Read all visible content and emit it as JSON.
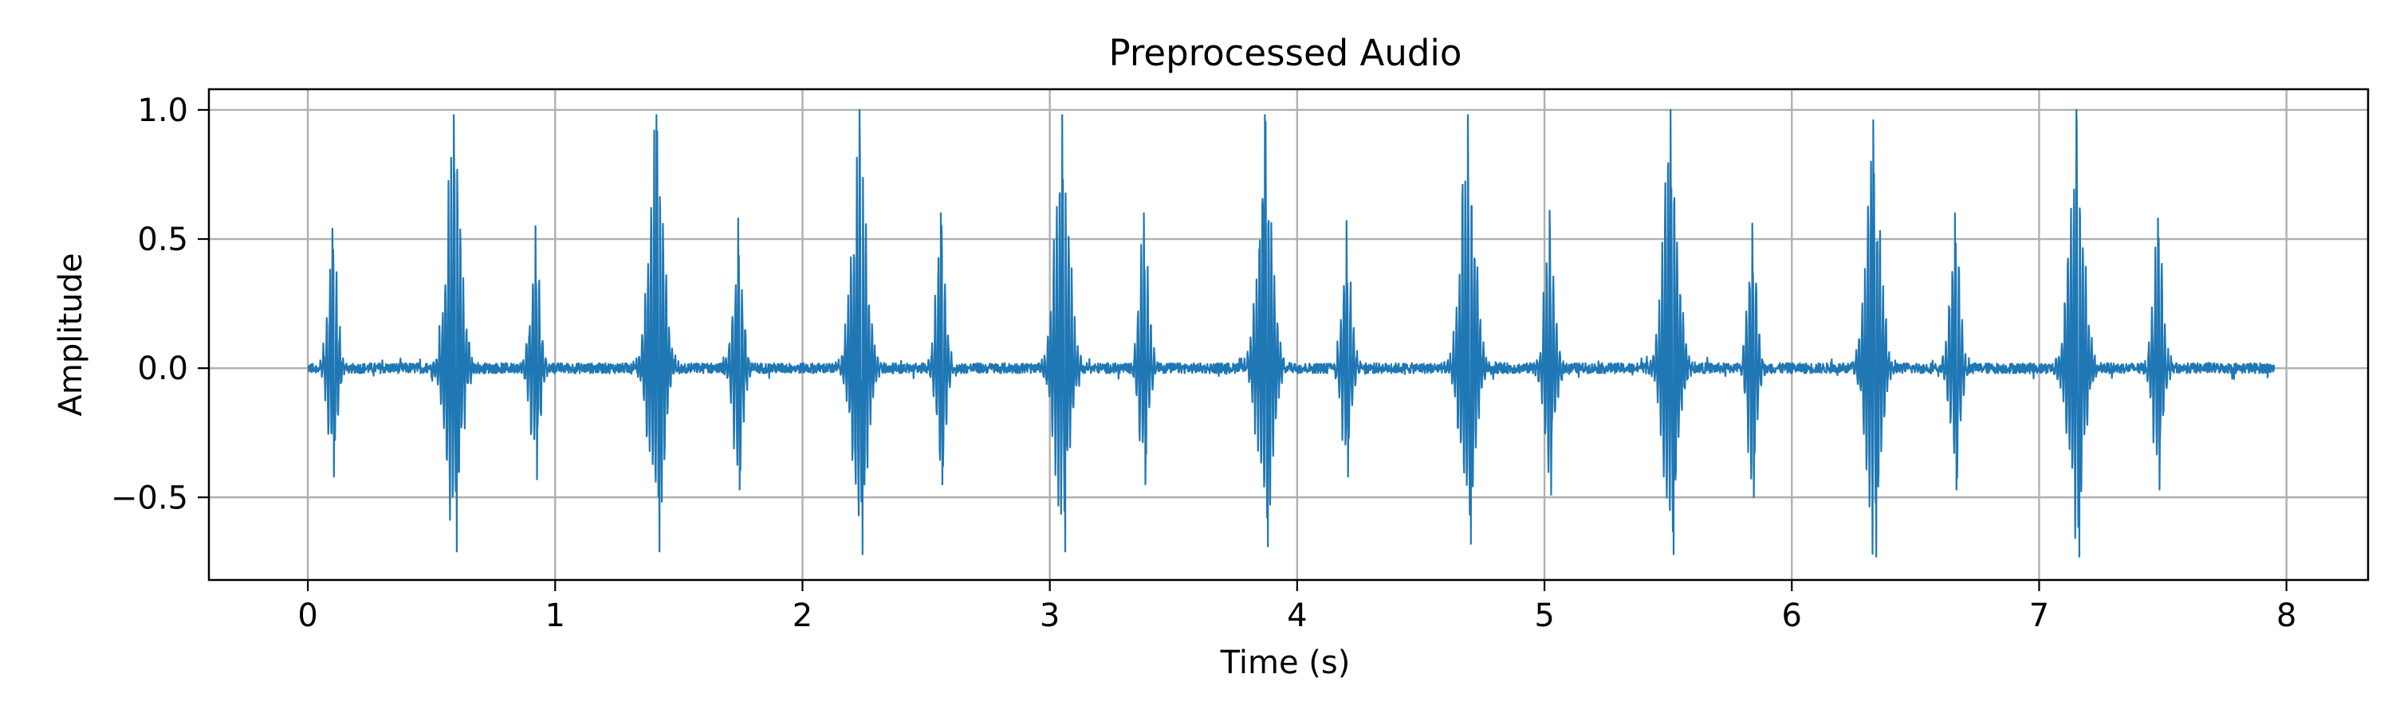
{
  "chart_data": {
    "type": "line",
    "title": "Preprocessed Audio",
    "xlabel": "Time (s)",
    "ylabel": "Amplitude",
    "xlim": [
      -0.4,
      8.33
    ],
    "ylim": [
      -0.82,
      1.08
    ],
    "xticks": [
      0,
      1,
      2,
      3,
      4,
      5,
      6,
      7,
      8
    ],
    "xtick_labels": [
      "0",
      "1",
      "2",
      "3",
      "4",
      "5",
      "6",
      "7",
      "8"
    ],
    "yticks": [
      -0.5,
      0.0,
      0.5,
      1.0
    ],
    "ytick_labels": [
      "−0.5",
      "0.0",
      "0.5",
      "1.0"
    ],
    "grid": true,
    "series_color": "#1f77b4",
    "duration": 7.95,
    "noise_amplitude": 0.02,
    "events": [
      {
        "t": 0.1,
        "peak": 0.54,
        "trough": -0.42,
        "kind": "minor"
      },
      {
        "t": 0.59,
        "peak": 0.98,
        "trough": -0.71,
        "kind": "major"
      },
      {
        "t": 0.92,
        "peak": 0.55,
        "trough": -0.43,
        "kind": "minor"
      },
      {
        "t": 1.41,
        "peak": 0.98,
        "trough": -0.71,
        "kind": "major"
      },
      {
        "t": 1.74,
        "peak": 0.58,
        "trough": -0.47,
        "kind": "minor"
      },
      {
        "t": 2.23,
        "peak": 1.0,
        "trough": -0.72,
        "kind": "major"
      },
      {
        "t": 2.56,
        "peak": 0.6,
        "trough": -0.45,
        "kind": "minor"
      },
      {
        "t": 3.05,
        "peak": 0.98,
        "trough": -0.71,
        "kind": "major"
      },
      {
        "t": 3.38,
        "peak": 0.6,
        "trough": -0.45,
        "kind": "minor"
      },
      {
        "t": 3.87,
        "peak": 0.98,
        "trough": -0.69,
        "kind": "major"
      },
      {
        "t": 4.2,
        "peak": 0.57,
        "trough": -0.42,
        "kind": "minor"
      },
      {
        "t": 4.69,
        "peak": 0.98,
        "trough": -0.68,
        "kind": "major"
      },
      {
        "t": 5.02,
        "peak": 0.61,
        "trough": -0.49,
        "kind": "minor"
      },
      {
        "t": 5.51,
        "peak": 1.0,
        "trough": -0.72,
        "kind": "major"
      },
      {
        "t": 5.84,
        "peak": 0.56,
        "trough": -0.5,
        "kind": "minor"
      },
      {
        "t": 6.33,
        "peak": 0.96,
        "trough": -0.73,
        "kind": "major"
      },
      {
        "t": 6.66,
        "peak": 0.6,
        "trough": -0.47,
        "kind": "minor"
      },
      {
        "t": 7.15,
        "peak": 1.0,
        "trough": -0.73,
        "kind": "major"
      },
      {
        "t": 7.48,
        "peak": 0.58,
        "trough": -0.47,
        "kind": "minor"
      }
    ]
  }
}
